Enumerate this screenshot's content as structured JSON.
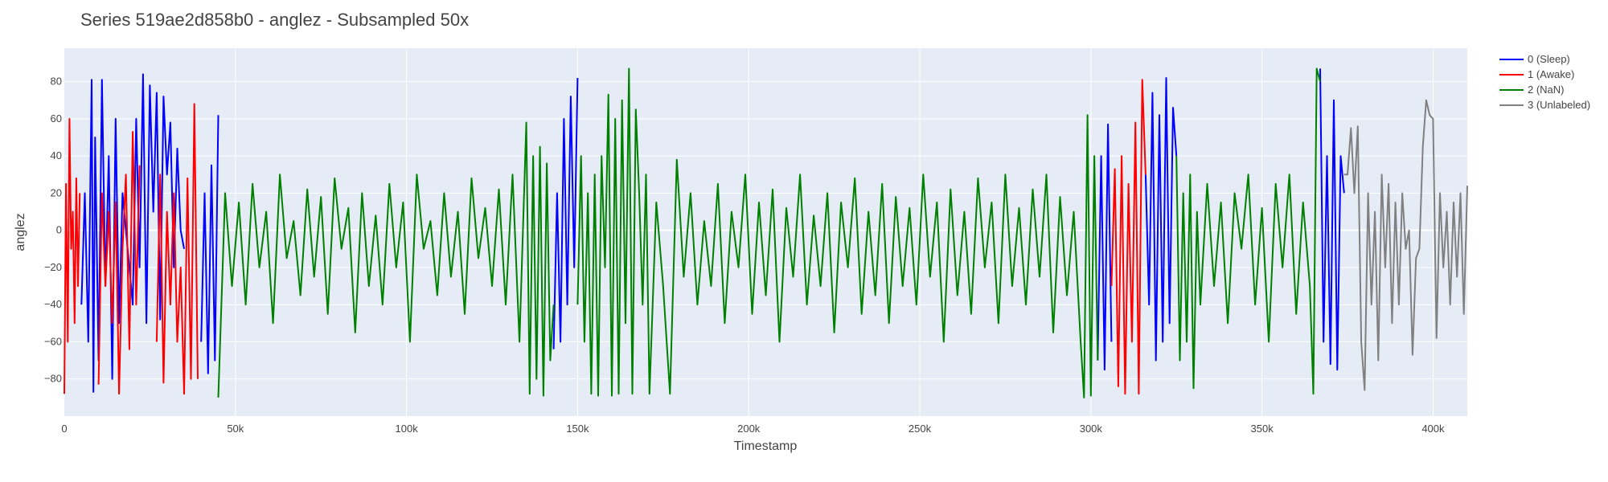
{
  "chart_data": {
    "type": "line",
    "title": "Series 519ae2d858b0 - anglez - Subsampled 50x",
    "xlabel": "Timestamp",
    "ylabel": "anglez",
    "xlim": [
      0,
      410000
    ],
    "ylim": [
      -100,
      98
    ],
    "x_ticks": [
      0,
      50000,
      100000,
      150000,
      200000,
      250000,
      300000,
      350000,
      400000
    ],
    "x_tick_labels": [
      "0",
      "50k",
      "100k",
      "150k",
      "200k",
      "250k",
      "300k",
      "350k",
      "400k"
    ],
    "y_ticks": [
      -80,
      -60,
      -40,
      -20,
      0,
      20,
      40,
      60,
      80
    ],
    "y_tick_labels": [
      "−80",
      "−60",
      "−40",
      "−20",
      "0",
      "20",
      "40",
      "60",
      "80"
    ],
    "grid": true,
    "legend_position": "top-right",
    "plot_background": "#e5ecf6",
    "series": [
      {
        "name": "0 (Sleep)",
        "color": "#0000ff",
        "segments": [
          {
            "x": [
              5000,
              6000,
              7000,
              8000,
              8500,
              9000,
              10000,
              11000,
              12000,
              13000,
              14000,
              15000,
              16000,
              17000,
              18000,
              20000,
              21000,
              22000,
              23000,
              24000,
              25000,
              26000,
              27000,
              28000,
              29000,
              30000,
              31000,
              32000,
              33000,
              34000,
              35000
            ],
            "y": [
              -40,
              20,
              -60,
              81,
              -87,
              50,
              -70,
              81,
              -30,
              40,
              -80,
              60,
              -50,
              20,
              0,
              -40,
              60,
              -20,
              84,
              -50,
              78,
              10,
              74,
              -48,
              72,
              30,
              58,
              -20,
              44,
              0,
              -10
            ]
          },
          {
            "x": [
              40000,
              41000,
              42000,
              43000,
              44000,
              45000
            ],
            "y": [
              -60,
              20,
              -77,
              35,
              -70,
              62
            ]
          },
          {
            "x": [
              143000,
              144000,
              145000,
              146000,
              147000,
              148000,
              149000,
              150000
            ],
            "y": [
              -64,
              20,
              -60,
              60,
              -40,
              72,
              -20,
              82
            ]
          },
          {
            "x": [
              302000,
              303000,
              304000,
              305000,
              306000
            ],
            "y": [
              -70,
              40,
              -75,
              57,
              -60
            ]
          },
          {
            "x": [
              316000,
              317000,
              318000,
              319000,
              320000,
              321000,
              322000,
              323000,
              324000,
              325000
            ],
            "y": [
              30,
              -40,
              74,
              -70,
              62,
              -60,
              82,
              -50,
              66,
              40
            ]
          },
          {
            "x": [
              367000,
              368000,
              369000,
              370000,
              371000,
              372000,
              373000,
              374000
            ],
            "y": [
              87,
              -60,
              40,
              -72,
              70,
              -75,
              40,
              20
            ]
          }
        ]
      },
      {
        "name": "1 (Awake)",
        "color": "#ff0000",
        "segments": [
          {
            "x": [
              0,
              500,
              1000,
              1500,
              2000,
              2500,
              3000,
              3500,
              4000,
              4500
            ],
            "y": [
              -88,
              25,
              -60,
              60,
              -10,
              10,
              -50,
              28,
              -30,
              20
            ]
          },
          {
            "x": [
              10000,
              11000,
              12000,
              13000,
              14000,
              15000,
              16000,
              17000,
              18000,
              19000,
              20000,
              21000,
              22000
            ],
            "y": [
              -83,
              20,
              -30,
              10,
              -50,
              15,
              -88,
              -10,
              30,
              -64,
              53,
              -40,
              35
            ]
          },
          {
            "x": [
              27000,
              28000,
              29000,
              30000,
              31000,
              32000,
              33000,
              34000,
              35000,
              36000,
              37000,
              38000,
              39000
            ],
            "y": [
              -60,
              30,
              -82,
              10,
              -40,
              20,
              -60,
              -20,
              -88,
              28,
              -80,
              68,
              -80
            ]
          },
          {
            "x": [
              306000,
              307000,
              308000,
              309000,
              310000,
              311000,
              312000,
              313000,
              314000,
              315000,
              316000
            ],
            "y": [
              -30,
              33,
              -84,
              40,
              -88,
              25,
              -60,
              58,
              -88,
              81,
              30
            ]
          }
        ]
      },
      {
        "name": "2 (NaN)",
        "color": "#008000",
        "segments": [
          {
            "x": [
              45000,
              47000,
              49000,
              51000,
              53000,
              55000,
              57000,
              59000,
              61000,
              63000,
              65000,
              67000,
              69000,
              71000,
              73000,
              75000,
              77000,
              79000,
              81000,
              83000,
              85000,
              87000,
              89000,
              91000,
              93000,
              95000,
              97000,
              99000,
              101000,
              103000,
              105000,
              107000,
              109000,
              111000,
              113000,
              115000,
              117000,
              119000,
              121000,
              123000,
              125000,
              127000,
              129000,
              131000,
              133000,
              135000,
              136000,
              137000,
              138000,
              139000,
              140000,
              141000,
              142000,
              143000
            ],
            "y": [
              -90,
              20,
              -30,
              15,
              -40,
              25,
              -20,
              10,
              -50,
              30,
              -15,
              5,
              -35,
              22,
              -25,
              18,
              -45,
              28,
              -10,
              12,
              -55,
              20,
              -30,
              8,
              -40,
              25,
              -20,
              15,
              -60,
              30,
              -10,
              5,
              -35,
              20,
              -25,
              10,
              -45,
              28,
              -15,
              12,
              -30,
              22,
              -40,
              30,
              -60,
              58,
              -88,
              40,
              -80,
              45,
              -89,
              36,
              -70,
              -40
            ]
          },
          {
            "x": [
              150000,
              151000,
              152000,
              153000,
              154000,
              155000,
              156000,
              157000,
              158000,
              159000,
              160000,
              161000,
              162000,
              163000,
              164000,
              165000,
              166000,
              167000,
              168000,
              169000,
              170000,
              171000,
              173000,
              175000,
              177000,
              179000,
              181000,
              183000,
              185000,
              187000,
              189000,
              191000,
              193000,
              195000,
              197000,
              199000,
              201000,
              203000,
              205000,
              207000,
              209000,
              211000,
              213000,
              215000,
              217000,
              219000,
              221000,
              223000,
              225000,
              227000,
              229000,
              231000,
              233000,
              235000,
              237000,
              239000,
              241000,
              243000,
              245000,
              247000,
              249000,
              251000,
              253000,
              255000,
              257000,
              259000,
              261000,
              263000,
              265000,
              267000,
              269000,
              271000,
              273000,
              275000,
              277000,
              279000,
              281000,
              283000,
              285000,
              287000,
              289000,
              291000,
              293000,
              295000,
              297000,
              298000,
              299000,
              300000,
              301000,
              302000
            ],
            "y": [
              -40,
              40,
              -60,
              20,
              -88,
              30,
              -89,
              40,
              -20,
              73,
              -89,
              60,
              -88,
              70,
              -50,
              87,
              -88,
              65,
              20,
              -40,
              30,
              -88,
              15,
              -30,
              -88,
              38,
              -25,
              20,
              -40,
              5,
              -30,
              25,
              -50,
              10,
              -20,
              30,
              -45,
              15,
              -35,
              22,
              -60,
              12,
              -25,
              30,
              -40,
              8,
              -30,
              20,
              -55,
              15,
              -20,
              28,
              -45,
              10,
              -35,
              25,
              -50,
              18,
              -30,
              12,
              -40,
              30,
              -25,
              15,
              -60,
              22,
              -35,
              10,
              -45,
              28,
              -20,
              15,
              -50,
              30,
              -30,
              12,
              -40,
              22,
              -25,
              30,
              -55,
              18,
              -35,
              10,
              -60,
              -90,
              62,
              -89,
              40,
              -70
            ]
          },
          {
            "x": [
              325000,
              326000,
              327000,
              328000,
              329000,
              330000,
              331000,
              332000,
              334000,
              336000,
              338000,
              340000,
              342000,
              344000,
              346000,
              348000,
              350000,
              352000,
              354000,
              356000,
              358000,
              360000,
              362000,
              364000,
              365000,
              366000,
              367000
            ],
            "y": [
              40,
              -70,
              20,
              -60,
              30,
              -85,
              10,
              -40,
              25,
              -30,
              15,
              -50,
              20,
              -10,
              30,
              -40,
              12,
              -60,
              25,
              -20,
              30,
              -45,
              15,
              -30,
              -88,
              87,
              80
            ]
          }
        ]
      },
      {
        "name": "3 (Unlabeled)",
        "color": "#808080",
        "segments": [
          {
            "x": [
              374000,
              375000,
              376000,
              377000,
              378000,
              379000,
              380000,
              381000,
              382000,
              383000,
              384000,
              385000,
              386000,
              387000,
              388000,
              389000,
              390000,
              391000,
              392000,
              393000,
              394000,
              395000,
              396000,
              397000,
              398000,
              399000,
              400000,
              401000,
              402000,
              403000,
              404000,
              405000,
              406000,
              407000,
              408000,
              409000,
              410000
            ],
            "y": [
              30,
              30,
              55,
              20,
              56,
              -60,
              -86,
              20,
              -40,
              10,
              -70,
              30,
              -20,
              25,
              -50,
              15,
              -40,
              20,
              -10,
              0,
              -67,
              -15,
              -10,
              45,
              70,
              62,
              60,
              -58,
              20,
              -20,
              10,
              -40,
              15,
              -25,
              20,
              -45,
              24
            ]
          }
        ]
      }
    ]
  }
}
